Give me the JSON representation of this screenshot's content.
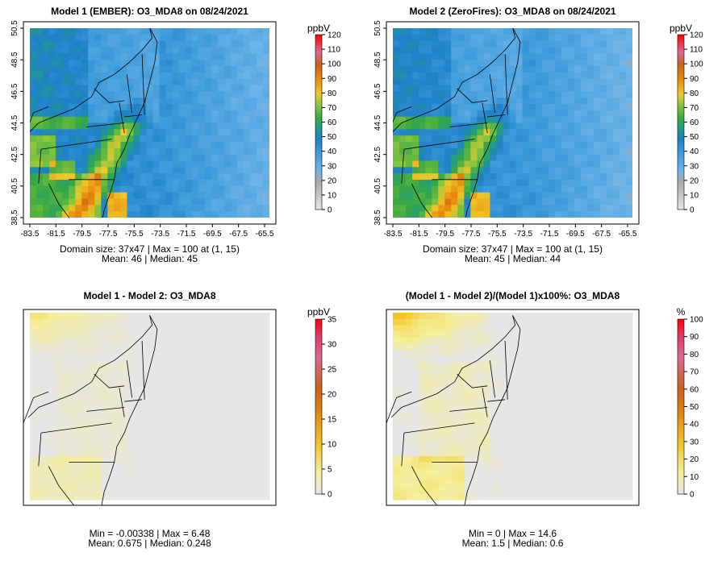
{
  "chart_data": [
    {
      "type": "heatmap",
      "title": "Model 1 (EMBER): O3_MDA8 on 08/24/2021",
      "variable": "O3_MDA8",
      "date": "08/24/2021",
      "x_ticks": [
        "-83.5",
        "-81.5",
        "-79.5",
        "-77.5",
        "-75.5",
        "-73.5",
        "-71.5",
        "-69.5",
        "-67.5",
        "-65.5"
      ],
      "y_ticks": [
        "38.5",
        "40.5",
        "42.5",
        "44.5",
        "46.5",
        "48.5",
        "50.5"
      ],
      "colorbar": {
        "unit": "ppbV",
        "min": 0,
        "max": 120,
        "ticks": [
          "0",
          "10",
          "20",
          "30",
          "40",
          "50",
          "60",
          "70",
          "80",
          "90",
          "100",
          "110",
          "120"
        ]
      },
      "pattern": "ozone",
      "stats_line1": "Domain size: 37x47 | Max = 100 at (1, 15)",
      "stats_line2": "Mean: 46 |  Median: 45"
    },
    {
      "type": "heatmap",
      "title": "Model 2 (ZeroFires): O3_MDA8 on 08/24/2021",
      "variable": "O3_MDA8",
      "date": "08/24/2021",
      "x_ticks": [
        "-83.5",
        "-81.5",
        "-79.5",
        "-77.5",
        "-75.5",
        "-73.5",
        "-71.5",
        "-69.5",
        "-67.5",
        "-65.5"
      ],
      "y_ticks": [
        "38.5",
        "40.5",
        "42.5",
        "44.5",
        "46.5",
        "48.5",
        "50.5"
      ],
      "colorbar": {
        "unit": "ppbV",
        "min": 0,
        "max": 120,
        "ticks": [
          "0",
          "10",
          "20",
          "30",
          "40",
          "50",
          "60",
          "70",
          "80",
          "90",
          "100",
          "110",
          "120"
        ]
      },
      "pattern": "ozone",
      "stats_line1": "Domain size: 37x47 | Max = 100 at (1, 15)",
      "stats_line2": "Mean: 45 |  Median: 44"
    },
    {
      "type": "heatmap",
      "title": "Model 1 - Model 2: O3_MDA8",
      "variable": "O3_MDA8",
      "colorbar": {
        "unit": "ppbV",
        "min": 0,
        "max": 35,
        "ticks": [
          "0",
          "5",
          "10",
          "15",
          "20",
          "25",
          "30",
          "35"
        ]
      },
      "pattern": "diff",
      "stats_line1": "Min = -0.00338 | Max = 6.48",
      "stats_line2": "Mean: 0.675 |  Median: 0.248"
    },
    {
      "type": "heatmap",
      "title": "(Model 1 - Model 2)/(Model 1)x100%: O3_MDA8",
      "variable": "O3_MDA8",
      "colorbar": {
        "unit": "%",
        "min": 0,
        "max": 100,
        "ticks": [
          "0",
          "10",
          "20",
          "30",
          "40",
          "50",
          "60",
          "70",
          "80",
          "90",
          "100"
        ]
      },
      "pattern": "pct",
      "stats_line1": "Min = 0 | Max = 14.6",
      "stats_line2": "Mean: 1.5 |  Median: 0.6"
    }
  ]
}
